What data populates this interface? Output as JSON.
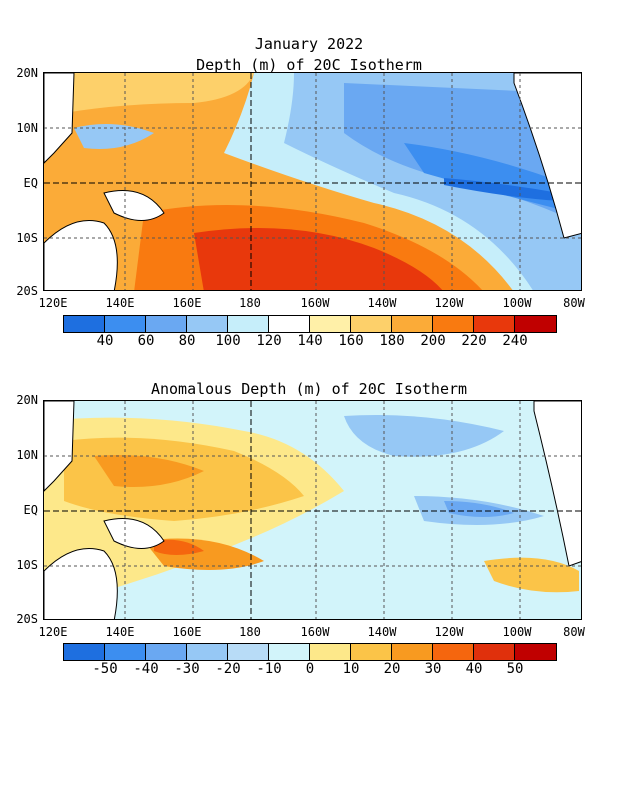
{
  "title": "January 2022",
  "panel1": {
    "title": "Depth (m) of 20C Isotherm",
    "colorbar": {
      "labels": [
        "40",
        "60",
        "80",
        "100",
        "120",
        "140",
        "160",
        "180",
        "200",
        "220",
        "240"
      ],
      "colors": [
        "#1e6fe0",
        "#3c8ef0",
        "#6aa8f2",
        "#96c8f5",
        "#c6eefa",
        "#ffffff",
        "#fff0a8",
        "#fdd06a",
        "#fbab38",
        "#f97a10",
        "#e8380c",
        "#c00000"
      ]
    }
  },
  "panel2": {
    "title": "Anomalous Depth (m) of 20C Isotherm",
    "colorbar": {
      "labels": [
        "-50",
        "-40",
        "-30",
        "-20",
        "-10",
        "0",
        "10",
        "20",
        "30",
        "40",
        "50"
      ],
      "colors": [
        "#1e6fe0",
        "#3c8ef0",
        "#6aa8f2",
        "#96c8f5",
        "#b8dcf7",
        "#d2f4fa",
        "#fde88a",
        "#fbc448",
        "#f89a20",
        "#f5660e",
        "#e0300c",
        "#c00000"
      ]
    }
  },
  "axes": {
    "lat_labels": [
      "20N",
      "10N",
      "EQ",
      "10S",
      "20S"
    ],
    "lon_labels": [
      "120E",
      "140E",
      "160E",
      "180",
      "160W",
      "140W",
      "120W",
      "100W",
      "80W"
    ]
  }
}
